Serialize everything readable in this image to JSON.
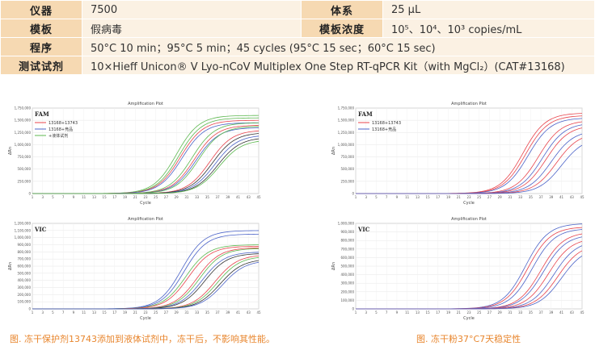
{
  "spec": {
    "rows": [
      {
        "k1": "仪器",
        "v1": "7500",
        "k2": "体系",
        "v2": "25 µL"
      },
      {
        "k1": "模板",
        "v1": "假病毒",
        "k2": "模板浓度",
        "v2": "10⁵、10⁴、10³ copies/mL"
      },
      {
        "k1": "程序",
        "v1": "50°C 10 min；95°C 5 min；45 cycles (95°C 15 sec；60°C 15 sec)"
      },
      {
        "k1": "测试试剂",
        "v1": "10×Hieff Unicon® V Lyo-nCoV Multiplex One Step RT-qPCR Kit（with MgCl₂）(CAT#13168)"
      }
    ]
  },
  "captions": {
    "left": "图. 冻干保护剂13743添加到液体试剂中，冻干后，不影响其性能。",
    "right": "图. 冻干粉37°C7天稳定性"
  },
  "colors": {
    "red": "#e8434b",
    "blue": "#4b63c8",
    "green": "#5cb84f",
    "black": "#333333",
    "caption": "#e8862e"
  },
  "chart_data": [
    {
      "type": "line",
      "title": "Amplification Plot",
      "tag": "FAM",
      "xlabel": "Cycle",
      "ylabel": "ΔRn",
      "xlim": [
        1,
        45
      ],
      "ylim": [
        0,
        1750000
      ],
      "yticks": [
        0,
        250000,
        500000,
        750000,
        1000000,
        1250000,
        1500000,
        1750000
      ],
      "ytick_labels": [
        "0",
        "250,000",
        "500,000",
        "750,000",
        "1,000,000",
        "1,250,000",
        "1,500,000",
        "1,750,000"
      ],
      "xticks": [
        1,
        3,
        5,
        7,
        9,
        11,
        13,
        15,
        17,
        19,
        21,
        23,
        25,
        27,
        29,
        31,
        33,
        35,
        37,
        39,
        41,
        43,
        45
      ],
      "legend": [
        {
          "name": "13168+13743",
          "color": "#e8434b"
        },
        {
          "name": "13168+竞品",
          "color": "#4b63c8"
        },
        {
          "name": "+液体试剂",
          "color": "#5cb84f"
        }
      ],
      "curves": [
        {
          "color": "#5cb84f",
          "ct": 25.5,
          "max": 1600000
        },
        {
          "color": "#5cb84f",
          "ct": 26.0,
          "max": 1550000
        },
        {
          "color": "#e8434b",
          "ct": 26.3,
          "max": 1500000
        },
        {
          "color": "#4b63c8",
          "ct": 26.6,
          "max": 1450000
        },
        {
          "color": "#5cb84f",
          "ct": 28.5,
          "max": 1450000
        },
        {
          "color": "#e8434b",
          "ct": 29.0,
          "max": 1400000
        },
        {
          "color": "#4b63c8",
          "ct": 29.3,
          "max": 1350000
        },
        {
          "color": "#5cb84f",
          "ct": 29.8,
          "max": 1380000
        },
        {
          "color": "#e8434b",
          "ct": 32.0,
          "max": 1300000
        },
        {
          "color": "#333333",
          "ct": 32.5,
          "max": 1250000
        },
        {
          "color": "#4b63c8",
          "ct": 33.0,
          "max": 1200000
        },
        {
          "color": "#333333",
          "ct": 33.5,
          "max": 1150000
        },
        {
          "color": "#5cb84f",
          "ct": 33.8,
          "max": 1100000
        }
      ]
    },
    {
      "type": "line",
      "title": "Amplification Plot",
      "tag": "VIC",
      "xlabel": "Cycle",
      "ylabel": "ΔRn",
      "xlim": [
        1,
        45
      ],
      "ylim": [
        0,
        1200000
      ],
      "yticks": [
        0,
        100000,
        200000,
        300000,
        400000,
        500000,
        600000,
        700000,
        800000,
        900000,
        1000000,
        1100000,
        1200000
      ],
      "ytick_labels": [
        "0",
        "100,000",
        "200,000",
        "300,000",
        "400,000",
        "500,000",
        "600,000",
        "700,000",
        "800,000",
        "900,000",
        "1,000,000",
        "1,100,000",
        "1,200,000"
      ],
      "xticks": [
        1,
        3,
        5,
        7,
        9,
        11,
        13,
        15,
        17,
        19,
        21,
        23,
        25,
        27,
        29,
        31,
        33,
        35,
        37,
        39,
        41,
        43,
        45
      ],
      "curves": [
        {
          "color": "#4b63c8",
          "ct": 26.5,
          "max": 1100000
        },
        {
          "color": "#4b63c8",
          "ct": 27.0,
          "max": 1050000
        },
        {
          "color": "#5cb84f",
          "ct": 27.3,
          "max": 900000
        },
        {
          "color": "#e8434b",
          "ct": 27.8,
          "max": 880000
        },
        {
          "color": "#e8434b",
          "ct": 29.5,
          "max": 860000
        },
        {
          "color": "#5cb84f",
          "ct": 30.0,
          "max": 850000
        },
        {
          "color": "#4b63c8",
          "ct": 30.5,
          "max": 800000
        },
        {
          "color": "#333333",
          "ct": 31.0,
          "max": 780000
        },
        {
          "color": "#e8434b",
          "ct": 33.0,
          "max": 760000
        },
        {
          "color": "#5cb84f",
          "ct": 33.5,
          "max": 740000
        },
        {
          "color": "#333333",
          "ct": 34.0,
          "max": 700000
        },
        {
          "color": "#4b63c8",
          "ct": 34.5,
          "max": 680000
        }
      ]
    },
    {
      "type": "line",
      "title": "Amplification Plot",
      "tag": "FAM",
      "xlabel": "Cycle",
      "ylabel": "ΔRn",
      "xlim": [
        1,
        45
      ],
      "ylim": [
        0,
        1750000
      ],
      "yticks": [
        0,
        250000,
        500000,
        750000,
        1000000,
        1250000,
        1500000,
        1750000
      ],
      "ytick_labels": [
        "0",
        "250,000",
        "500,000",
        "750,000",
        "1,000,000",
        "1,250,000",
        "1,500,000",
        "1,750,000"
      ],
      "xticks": [
        1,
        3,
        5,
        7,
        9,
        11,
        13,
        15,
        17,
        19,
        21,
        23,
        25,
        27,
        29,
        31,
        33,
        35,
        37,
        39,
        41,
        43,
        45
      ],
      "legend": [
        {
          "name": "13168+13743",
          "color": "#e8434b"
        },
        {
          "name": "13168+竞品",
          "color": "#4b63c8"
        }
      ],
      "curves": [
        {
          "color": "#e8434b",
          "ct": 30.0,
          "max": 1650000
        },
        {
          "color": "#e8434b",
          "ct": 30.5,
          "max": 1600000
        },
        {
          "color": "#4b63c8",
          "ct": 31.0,
          "max": 1550000
        },
        {
          "color": "#e8434b",
          "ct": 33.0,
          "max": 1500000
        },
        {
          "color": "#4b63c8",
          "ct": 33.8,
          "max": 1450000
        },
        {
          "color": "#e8434b",
          "ct": 34.5,
          "max": 1400000
        },
        {
          "color": "#4b63c8",
          "ct": 35.5,
          "max": 1300000
        },
        {
          "color": "#e8434b",
          "ct": 36.5,
          "max": 1250000
        },
        {
          "color": "#4b63c8",
          "ct": 37.5,
          "max": 1150000
        }
      ]
    },
    {
      "type": "line",
      "title": "Amplification Plot",
      "tag": "VIC",
      "xlabel": "Cycle",
      "ylabel": "ΔRn",
      "xlim": [
        1,
        45
      ],
      "ylim": [
        0,
        1000000
      ],
      "yticks": [
        0,
        100000,
        200000,
        300000,
        400000,
        500000,
        600000,
        700000,
        800000,
        900000,
        1000000
      ],
      "ytick_labels": [
        "0",
        "100,000",
        "200,000",
        "300,000",
        "400,000",
        "500,000",
        "600,000",
        "700,000",
        "800,000",
        "900,000",
        "1,000,000"
      ],
      "xticks": [
        1,
        3,
        5,
        7,
        9,
        11,
        13,
        15,
        17,
        19,
        21,
        23,
        25,
        27,
        29,
        31,
        33,
        35,
        37,
        39,
        41,
        43,
        45
      ],
      "curves": [
        {
          "color": "#4b63c8",
          "ct": 30.5,
          "max": 1000000
        },
        {
          "color": "#e8434b",
          "ct": 31.0,
          "max": 960000
        },
        {
          "color": "#4b63c8",
          "ct": 31.8,
          "max": 940000
        },
        {
          "color": "#e8434b",
          "ct": 33.5,
          "max": 900000
        },
        {
          "color": "#4b63c8",
          "ct": 34.0,
          "max": 870000
        },
        {
          "color": "#e8434b",
          "ct": 35.0,
          "max": 830000
        },
        {
          "color": "#4b63c8",
          "ct": 36.0,
          "max": 800000
        },
        {
          "color": "#e8434b",
          "ct": 36.8,
          "max": 760000
        },
        {
          "color": "#4b63c8",
          "ct": 37.5,
          "max": 720000
        }
      ]
    }
  ]
}
